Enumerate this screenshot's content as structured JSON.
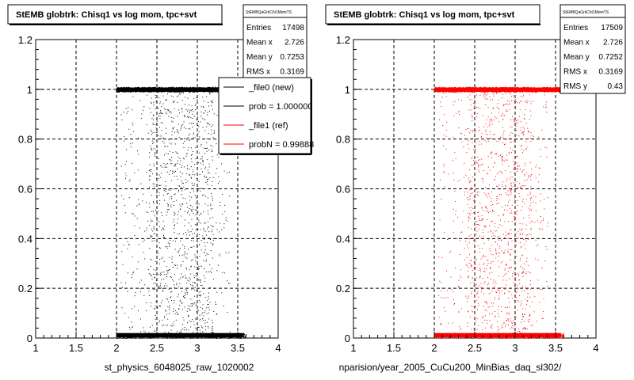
{
  "chart_data": [
    {
      "type": "scatter",
      "title": "StEMB globtrk: Chisq1 vs log mom, tpc+svt",
      "xlabel": "st_physics_6048025_raw_1020002",
      "ylabel": "",
      "xlim": [
        1,
        4
      ],
      "ylim": [
        0,
        1.2
      ],
      "x_ticks": [
        "1",
        "1.5",
        "2",
        "2.5",
        "3",
        "3.5",
        "4"
      ],
      "y_ticks": [
        "0",
        "0.2",
        "0.4",
        "0.6",
        "0.8",
        "1",
        "1.2"
      ],
      "grid": true,
      "marker_color": "#000000",
      "distribution": {
        "x_range": [
          2.0,
          3.6
        ],
        "bands_y": [
          0.01,
          1.0
        ],
        "band_fraction": 0.7
      },
      "stats": {
        "header": "StEMBQaGrkChi1MomTS",
        "rows": [
          {
            "label": "Entries",
            "value": "17498"
          },
          {
            "label": "Mean x",
            "value": "2.726"
          },
          {
            "label": "Mean y",
            "value": "0.7253"
          },
          {
            "label": "RMS x",
            "value": "0.3169"
          }
        ]
      },
      "legend": {
        "placement": "top-right",
        "entries": [
          {
            "label": "_file0 (new)",
            "color": "#000000"
          },
          {
            "label": "prob = 1.000000",
            "color": "#000000"
          },
          {
            "label": "_file1 (ref)",
            "color": "#ff0000"
          },
          {
            "label": "probN = 0.99888",
            "color": "#ff0000"
          }
        ]
      }
    },
    {
      "type": "scatter",
      "title": "StEMB globtrk: Chisq1 vs log mom, tpc+svt",
      "xlabel": "nparision/year_2005_CuCu200_MinBias_daq_sl302/",
      "ylabel": "",
      "xlim": [
        1,
        4
      ],
      "ylim": [
        0,
        1.2
      ],
      "x_ticks": [
        "1",
        "1.5",
        "2",
        "2.5",
        "3",
        "3.5",
        "4"
      ],
      "y_ticks": [
        "0",
        "0.2",
        "0.4",
        "0.6",
        "0.8",
        "1",
        "1.2"
      ],
      "grid": true,
      "marker_color": "#ff0000",
      "distribution": {
        "x_range": [
          2.0,
          3.6
        ],
        "bands_y": [
          0.01,
          1.0
        ],
        "band_fraction": 0.7
      },
      "stats": {
        "header": "StEMBQaGrkChi1MomTS",
        "rows": [
          {
            "label": "Entries",
            "value": "17509"
          },
          {
            "label": "Mean x",
            "value": "2.726"
          },
          {
            "label": "Mean y",
            "value": "0.7252"
          },
          {
            "label": "RMS x",
            "value": "0.3169"
          },
          {
            "label": "RMS y",
            "value": "0.43"
          }
        ]
      }
    }
  ]
}
